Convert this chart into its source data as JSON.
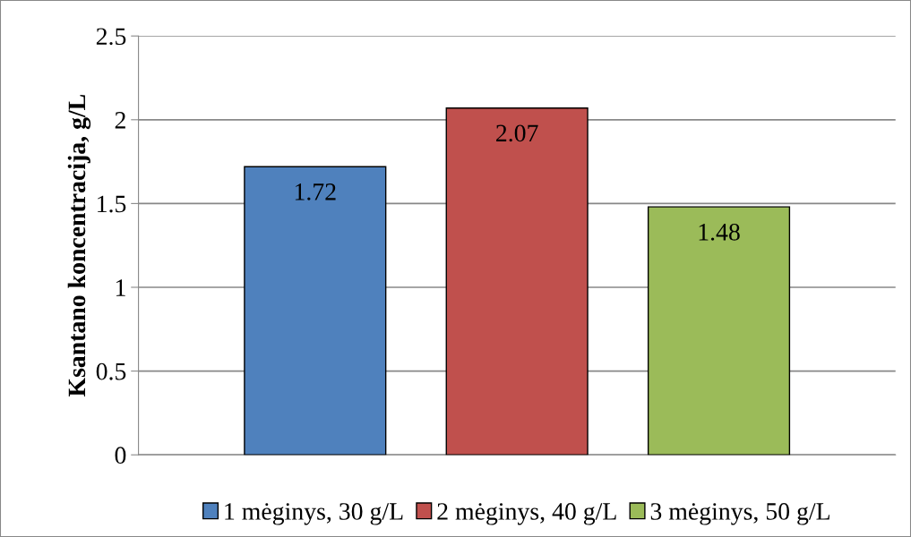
{
  "chart_data": {
    "type": "bar",
    "ylabel": "Ksantano koncentracija, g/L",
    "categories": [
      null
    ],
    "series": [
      {
        "name": "1 mėginys, 30 g/L",
        "color": "#4f81bd",
        "values": [
          1.72
        ]
      },
      {
        "name": "2 mėginys, 40 g/L",
        "color": "#c0504d",
        "values": [
          2.07
        ]
      },
      {
        "name": "3 mėginys, 50 g/L",
        "color": "#9bbb59",
        "values": [
          1.48
        ]
      }
    ],
    "ylim": [
      0,
      2.5
    ],
    "yticks": [
      0,
      0.5,
      1,
      1.5,
      2,
      2.5
    ],
    "grid": "y",
    "legend": "bottom",
    "data_labels": true
  }
}
